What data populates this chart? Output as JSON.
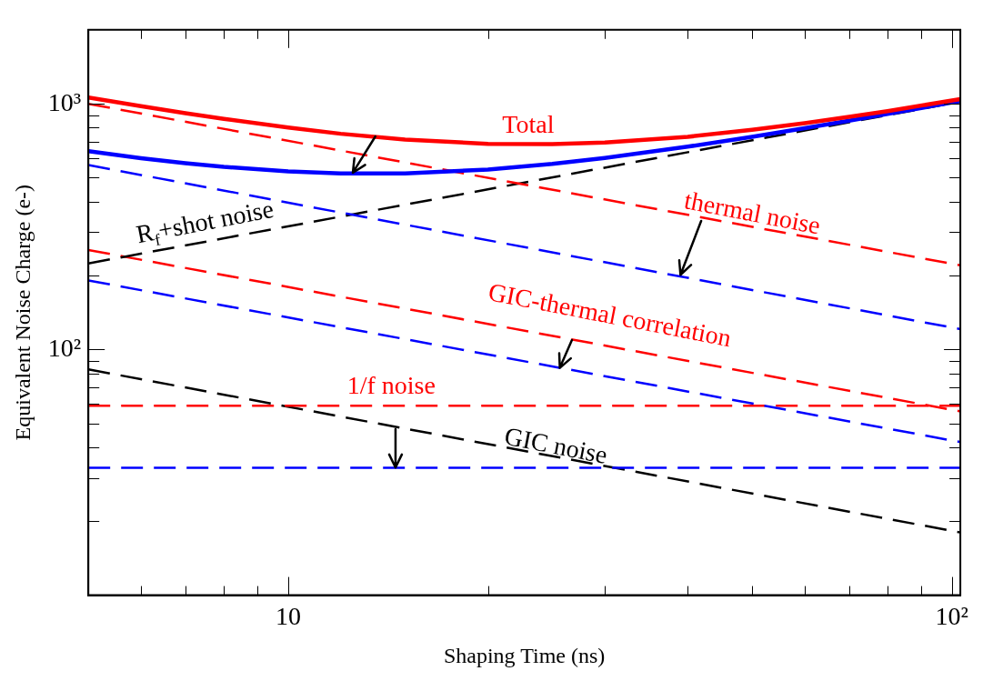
{
  "chart_data": {
    "type": "line",
    "xlabel": "Shaping Time (ns)",
    "ylabel": "Equivalent Noise Charge (e-)",
    "log": "xy",
    "grid": false,
    "legend": false,
    "marker": "none",
    "xlim": [
      5,
      103
    ],
    "ylim": [
      10,
      2000
    ],
    "xticks": [
      {
        "value": 6,
        "label": null
      },
      {
        "value": 7,
        "label": null
      },
      {
        "value": 8,
        "label": null
      },
      {
        "value": 9,
        "label": null
      },
      {
        "value": 10,
        "label": "10"
      },
      {
        "value": 20,
        "label": null
      },
      {
        "value": 30,
        "label": null
      },
      {
        "value": 40,
        "label": null
      },
      {
        "value": 50,
        "label": null
      },
      {
        "value": 60,
        "label": null
      },
      {
        "value": 70,
        "label": null
      },
      {
        "value": 80,
        "label": null
      },
      {
        "value": 90,
        "label": null
      },
      {
        "value": 100,
        "label": "10²"
      }
    ],
    "yticks": [
      {
        "value": 20,
        "label": null
      },
      {
        "value": 30,
        "label": null
      },
      {
        "value": 40,
        "label": null
      },
      {
        "value": 50,
        "label": null
      },
      {
        "value": 60,
        "label": null
      },
      {
        "value": 70,
        "label": null
      },
      {
        "value": 80,
        "label": null
      },
      {
        "value": 90,
        "label": null
      },
      {
        "value": 100,
        "label": "10²"
      },
      {
        "value": 200,
        "label": null
      },
      {
        "value": 300,
        "label": null
      },
      {
        "value": 400,
        "label": null
      },
      {
        "value": 500,
        "label": null
      },
      {
        "value": 600,
        "label": null
      },
      {
        "value": 700,
        "label": null
      },
      {
        "value": 800,
        "label": null
      },
      {
        "value": 900,
        "label": null
      },
      {
        "value": 1000,
        "label": "10³"
      }
    ],
    "series": [
      {
        "color": "#ff0000",
        "line_style": "solid",
        "x": [
          5,
          6,
          7,
          8,
          10,
          12,
          15,
          20,
          25,
          30,
          40,
          50,
          60,
          70,
          80,
          103
        ],
        "values": [
          1061,
          978,
          916,
          868,
          800,
          755,
          715,
          687,
          685,
          695,
          734,
          783,
          834,
          885,
          934,
          1044
        ]
      },
      {
        "color": "#0000ff",
        "line_style": "solid",
        "x": [
          5,
          6,
          7,
          8,
          10,
          12,
          15,
          20,
          25,
          30,
          40,
          50,
          60,
          70,
          80,
          103
        ],
        "values": [
          642,
          601,
          573,
          554,
          531,
          521,
          521,
          540,
          569,
          602,
          669,
          734,
          796,
          854,
          909,
          1026
        ]
      },
      {
        "color": "#ff0000",
        "line_style": "dashed",
        "x": [
          5,
          103
        ],
        "values": [
          1000,
          220
        ]
      },
      {
        "color": "#0000ff",
        "line_style": "dashed",
        "x": [
          5,
          103
        ],
        "values": [
          563,
          121
        ]
      },
      {
        "color": "#000000",
        "line_style": "dashed",
        "x": [
          5,
          103
        ],
        "values": [
          224,
          1020
        ]
      },
      {
        "color": "#ff0000",
        "line_style": "dashed",
        "x": [
          5,
          103
        ],
        "values": [
          254,
          56
        ]
      },
      {
        "color": "#0000ff",
        "line_style": "dashed",
        "x": [
          5,
          103
        ],
        "values": [
          191,
          42
        ]
      },
      {
        "color": "#ff0000",
        "line_style": "dashed",
        "x": [
          5,
          103
        ],
        "values": [
          59,
          59
        ]
      },
      {
        "color": "#0000ff",
        "line_style": "dashed",
        "x": [
          5,
          103
        ],
        "values": [
          33,
          33
        ]
      },
      {
        "color": "#000000",
        "line_style": "dashed",
        "x": [
          5,
          103
        ],
        "values": [
          83,
          18
        ]
      }
    ],
    "annotations": [
      "Total",
      {
        "text": "thermal noise",
        "x": 39,
        "y": 201
      },
      {
        "text": "GIC-thermal correlation",
        "x": 25.7,
        "y": 84
      },
      {
        "text": "1/f noise",
        "x": 14.5,
        "y": 33
      },
      "GIC noise",
      "R$_{f}$+shot noise"
    ]
  }
}
